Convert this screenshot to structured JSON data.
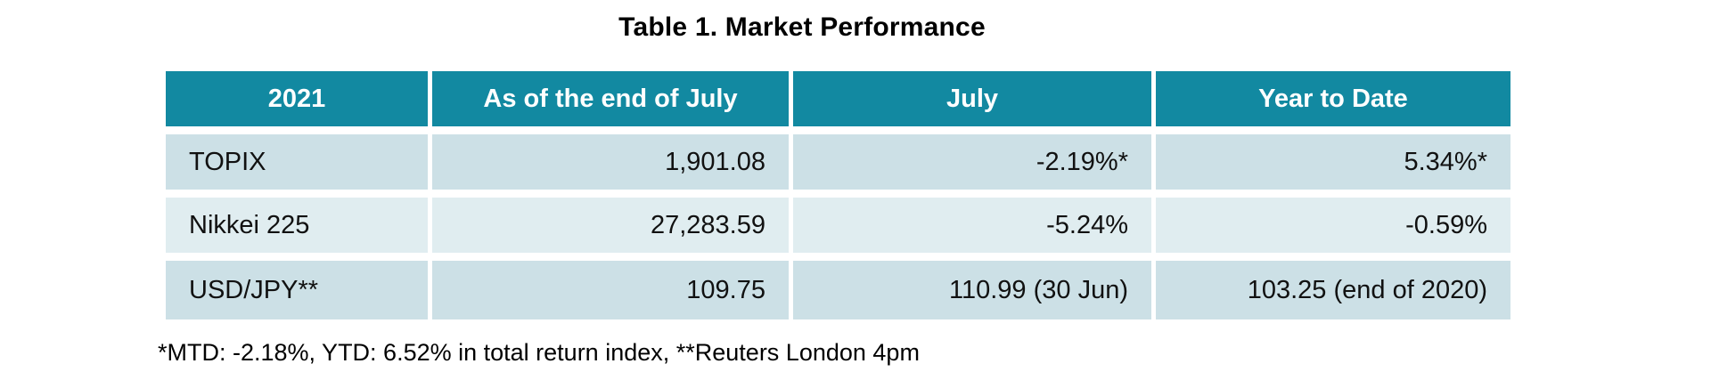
{
  "title": "Table 1. Market Performance",
  "table": {
    "columns": [
      {
        "label": "2021"
      },
      {
        "label": "As of the end of July"
      },
      {
        "label": "July"
      },
      {
        "label": "Year to Date"
      }
    ],
    "rows": [
      {
        "cells": [
          "TOPIX",
          "1,901.08",
          "-2.19%*",
          "5.34%*"
        ]
      },
      {
        "cells": [
          "Nikkei 225",
          "27,283.59",
          "-5.24%",
          "-0.59%"
        ]
      },
      {
        "cells": [
          "USD/JPY**",
          "109.75",
          "110.99 (30 Jun)",
          "103.25 (end of 2020)"
        ]
      }
    ]
  },
  "footnote": "*MTD: -2.18%, YTD: 6.52% in total return index, **Reuters London 4pm",
  "colors": {
    "header_bg": "#1289A1",
    "header_text": "#FFFFFF",
    "row_odd_bg": "#CCE0E6",
    "row_even_bg": "#E0EDF0",
    "text": "#111111",
    "page_bg": "#FFFFFF"
  }
}
